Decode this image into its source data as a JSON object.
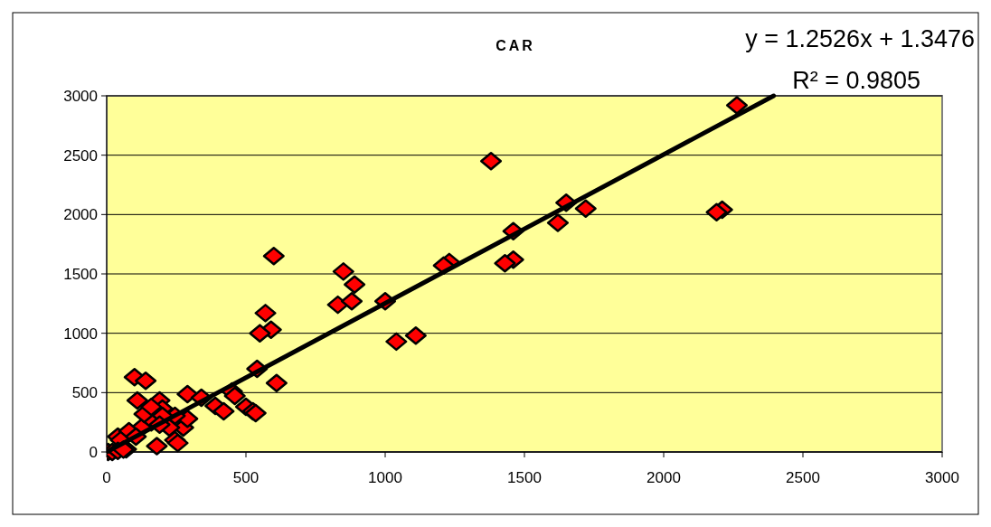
{
  "chart_data": {
    "type": "scatter",
    "title": "CAR",
    "xlim": [
      0,
      3000
    ],
    "xticks": [
      0,
      500,
      1000,
      1500,
      2000,
      2500,
      3000
    ],
    "ylim": [
      0,
      3000
    ],
    "yticks": [
      0,
      500,
      1000,
      1500,
      2000,
      2500,
      3000
    ],
    "grid": "y",
    "annotations": [
      "y = 1.2526x + 1.3476",
      "R² = 0.9805"
    ],
    "series": [
      {
        "marker": "diamond",
        "color": "#ff0000",
        "x": [
          2263,
          2210,
          2190,
          1380,
          1650,
          1620,
          1720,
          1460,
          1460,
          1430,
          1230,
          1210,
          600,
          850,
          830,
          890,
          880,
          1000,
          1110,
          1040,
          570,
          590,
          550,
          540,
          610,
          100,
          140,
          110,
          190,
          200,
          290,
          340,
          390,
          420,
          450,
          460,
          500,
          525,
          535,
          40,
          5,
          70,
          180,
          245,
          255,
          275,
          290,
          245,
          200,
          160,
          125,
          80,
          135,
          160,
          50,
          105,
          225,
          190,
          20,
          40,
          60
        ],
        "values": [
          2920,
          2040,
          2020,
          2450,
          2100,
          1930,
          2050,
          1860,
          1620,
          1590,
          1600,
          1570,
          1650,
          1520,
          1240,
          1410,
          1270,
          1270,
          980,
          930,
          1170,
          1030,
          1000,
          700,
          580,
          630,
          600,
          434,
          434,
          365,
          487,
          457,
          388,
          343,
          510,
          472,
          381,
          343,
          328,
          130,
          0,
          23,
          50,
          100,
          75,
          205,
          280,
          305,
          305,
          250,
          205,
          175,
          320,
          380,
          100,
          130,
          205,
          230,
          0,
          10,
          20
        ]
      },
      {
        "type": "line",
        "color": "#000000",
        "x": [
          0,
          2394.9
        ],
        "values": [
          0,
          3000
        ]
      }
    ]
  }
}
